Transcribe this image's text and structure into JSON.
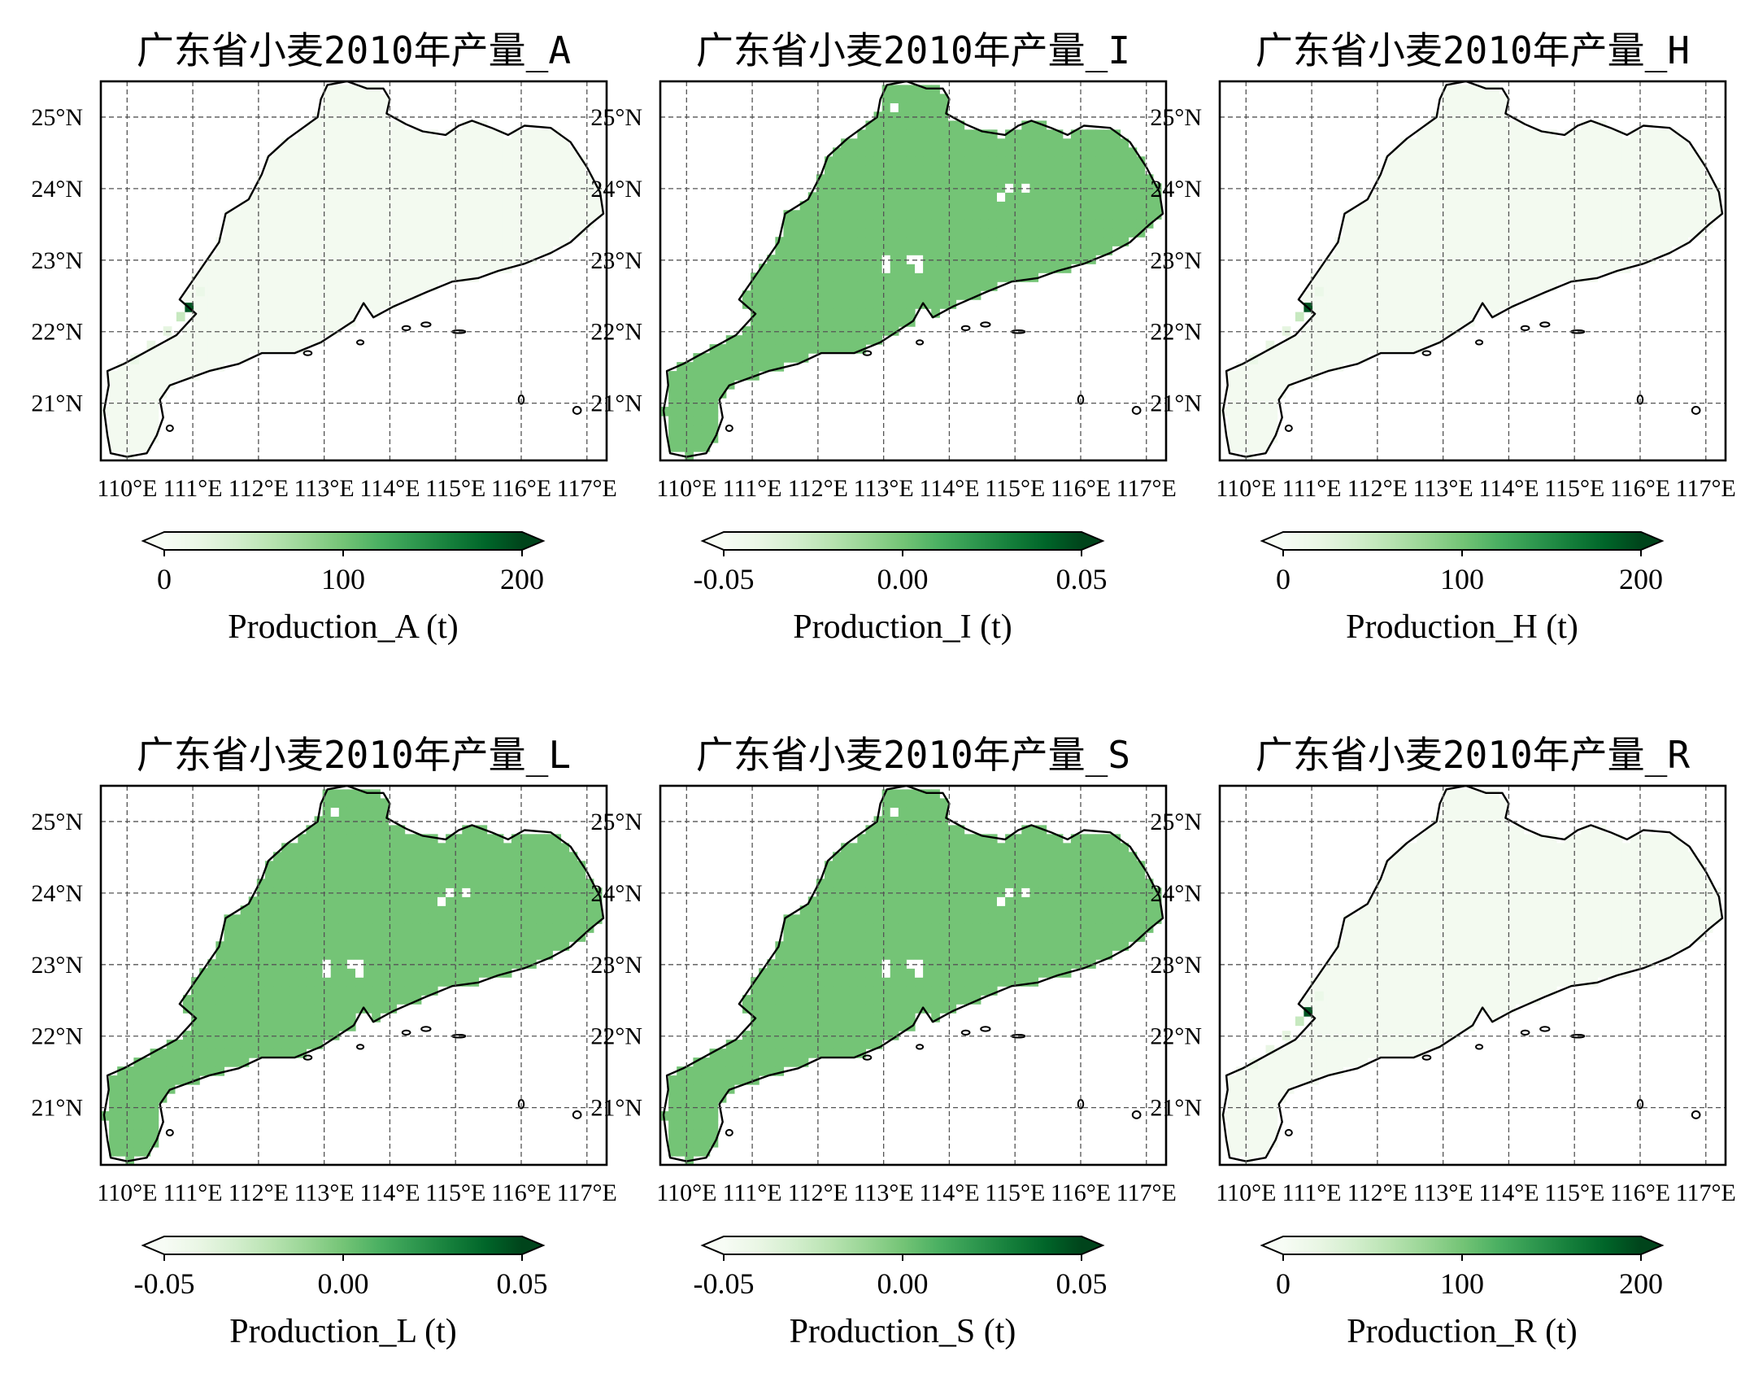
{
  "chart_data": [
    {
      "type": "heatmap",
      "title": "广东省小麦2010年产量_A",
      "x_ticks": [
        "110°E",
        "111°E",
        "112°E",
        "113°E",
        "114°E",
        "115°E",
        "116°E",
        "117°E"
      ],
      "y_ticks": [
        "25°N",
        "24°N",
        "23°N",
        "22°N",
        "21°N"
      ],
      "xlim": [
        109.6,
        117.3
      ],
      "ylim": [
        20.2,
        25.5
      ],
      "grid": true,
      "colorbar": {
        "label": "Production_A (t)",
        "ticks": [
          "0",
          "100",
          "200"
        ],
        "range": [
          0,
          200
        ],
        "cmap": "Greens",
        "extend": "both"
      },
      "fill_level": 0.03,
      "hotspot_level": 0.95
    },
    {
      "type": "heatmap",
      "title": "广东省小麦2010年产量_I",
      "x_ticks": [
        "110°E",
        "111°E",
        "112°E",
        "113°E",
        "114°E",
        "115°E",
        "116°E",
        "117°E"
      ],
      "y_ticks": [
        "25°N",
        "24°N",
        "23°N",
        "22°N",
        "21°N"
      ],
      "xlim": [
        109.6,
        117.3
      ],
      "ylim": [
        20.2,
        25.5
      ],
      "grid": true,
      "colorbar": {
        "label": "Production_I (t)",
        "ticks": [
          "-0.05",
          "0.00",
          "0.05"
        ],
        "range": [
          -0.05,
          0.05
        ],
        "cmap": "Greens",
        "extend": "both"
      },
      "fill_level": 0.5,
      "hotspot_level": null
    },
    {
      "type": "heatmap",
      "title": "广东省小麦2010年产量_H",
      "x_ticks": [
        "110°E",
        "111°E",
        "112°E",
        "113°E",
        "114°E",
        "115°E",
        "116°E",
        "117°E"
      ],
      "y_ticks": [
        "25°N",
        "24°N",
        "23°N",
        "22°N",
        "21°N"
      ],
      "xlim": [
        109.6,
        117.3
      ],
      "ylim": [
        20.2,
        25.5
      ],
      "grid": true,
      "colorbar": {
        "label": "Production_H (t)",
        "ticks": [
          "0",
          "100",
          "200"
        ],
        "range": [
          0,
          200
        ],
        "cmap": "Greens",
        "extend": "both"
      },
      "fill_level": 0.03,
      "hotspot_level": 0.95
    },
    {
      "type": "heatmap",
      "title": "广东省小麦2010年产量_L",
      "x_ticks": [
        "110°E",
        "111°E",
        "112°E",
        "113°E",
        "114°E",
        "115°E",
        "116°E",
        "117°E"
      ],
      "y_ticks": [
        "25°N",
        "24°N",
        "23°N",
        "22°N",
        "21°N"
      ],
      "xlim": [
        109.6,
        117.3
      ],
      "ylim": [
        20.2,
        25.5
      ],
      "grid": true,
      "colorbar": {
        "label": "Production_L (t)",
        "ticks": [
          "-0.05",
          "0.00",
          "0.05"
        ],
        "range": [
          -0.05,
          0.05
        ],
        "cmap": "Greens",
        "extend": "both"
      },
      "fill_level": 0.5,
      "hotspot_level": null
    },
    {
      "type": "heatmap",
      "title": "广东省小麦2010年产量_S",
      "x_ticks": [
        "110°E",
        "111°E",
        "112°E",
        "113°E",
        "114°E",
        "115°E",
        "116°E",
        "117°E"
      ],
      "y_ticks": [
        "25°N",
        "24°N",
        "23°N",
        "22°N",
        "21°N"
      ],
      "xlim": [
        109.6,
        117.3
      ],
      "ylim": [
        20.2,
        25.5
      ],
      "grid": true,
      "colorbar": {
        "label": "Production_S (t)",
        "ticks": [
          "-0.05",
          "0.00",
          "0.05"
        ],
        "range": [
          -0.05,
          0.05
        ],
        "cmap": "Greens",
        "extend": "both"
      },
      "fill_level": 0.5,
      "hotspot_level": null
    },
    {
      "type": "heatmap",
      "title": "广东省小麦2010年产量_R",
      "x_ticks": [
        "110°E",
        "111°E",
        "112°E",
        "113°E",
        "114°E",
        "115°E",
        "116°E",
        "117°E"
      ],
      "y_ticks": [
        "25°N",
        "24°N",
        "23°N",
        "22°N",
        "21°N"
      ],
      "xlim": [
        109.6,
        117.3
      ],
      "ylim": [
        20.2,
        25.5
      ],
      "grid": true,
      "colorbar": {
        "label": "Production_R (t)",
        "ticks": [
          "0",
          "100",
          "200"
        ],
        "range": [
          0,
          200
        ],
        "cmap": "Greens",
        "extend": "both"
      },
      "fill_level": 0.03,
      "hotspot_level": 0.95
    }
  ]
}
